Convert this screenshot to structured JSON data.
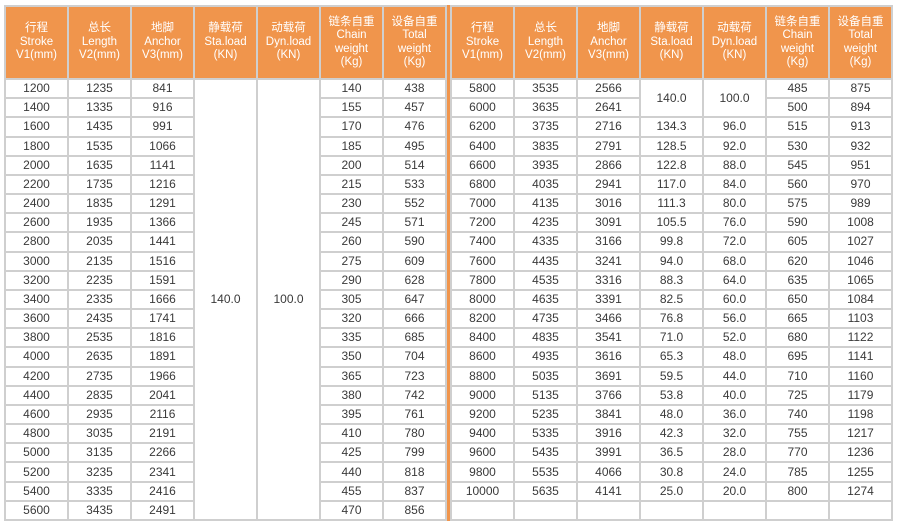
{
  "colors": {
    "header_bg": "#F0954C",
    "header_text": "#FFFFFF",
    "grid_line": "#CFCFCF",
    "body_text": "#3A3A3A",
    "cell_bg": "#FFFFFF",
    "center_divider": "#F0954C"
  },
  "columns": [
    {
      "id": "stroke",
      "lines": [
        "行程",
        "Stroke",
        "V1(mm)"
      ]
    },
    {
      "id": "length",
      "lines": [
        "总长",
        "Length",
        "V2(mm)"
      ]
    },
    {
      "id": "anchor",
      "lines": [
        "地脚",
        "Anchor",
        "V3(mm)"
      ]
    },
    {
      "id": "sta-load",
      "lines": [
        "静载荷",
        "Sta.load",
        "(KN)"
      ]
    },
    {
      "id": "dyn-load",
      "lines": [
        "动载荷",
        "Dyn.load",
        "(KN)"
      ]
    },
    {
      "id": "chain-weight",
      "lines": [
        "链条自重",
        "Chain",
        "weight",
        "(Kg)"
      ]
    },
    {
      "id": "total-weight",
      "lines": [
        "设备自重",
        "Total",
        "weight",
        "(Kg)"
      ]
    }
  ],
  "left_table": {
    "merges": [
      {
        "row": 0,
        "col": 3,
        "rowspan": 23,
        "value": "140.0"
      },
      {
        "row": 0,
        "col": 4,
        "rowspan": 23,
        "value": "100.0"
      }
    ],
    "rows": [
      [
        "1200",
        "1235",
        "841",
        "",
        "",
        "140",
        "438"
      ],
      [
        "1400",
        "1335",
        "916",
        "",
        "",
        "155",
        "457"
      ],
      [
        "1600",
        "1435",
        "991",
        "",
        "",
        "170",
        "476"
      ],
      [
        "1800",
        "1535",
        "1066",
        "",
        "",
        "185",
        "495"
      ],
      [
        "2000",
        "1635",
        "1141",
        "",
        "",
        "200",
        "514"
      ],
      [
        "2200",
        "1735",
        "1216",
        "",
        "",
        "215",
        "533"
      ],
      [
        "2400",
        "1835",
        "1291",
        "",
        "",
        "230",
        "552"
      ],
      [
        "2600",
        "1935",
        "1366",
        "",
        "",
        "245",
        "571"
      ],
      [
        "2800",
        "2035",
        "1441",
        "",
        "",
        "260",
        "590"
      ],
      [
        "3000",
        "2135",
        "1516",
        "",
        "",
        "275",
        "609"
      ],
      [
        "3200",
        "2235",
        "1591",
        "",
        "",
        "290",
        "628"
      ],
      [
        "3400",
        "2335",
        "1666",
        "",
        "",
        "305",
        "647"
      ],
      [
        "3600",
        "2435",
        "1741",
        "",
        "",
        "320",
        "666"
      ],
      [
        "3800",
        "2535",
        "1816",
        "",
        "",
        "335",
        "685"
      ],
      [
        "4000",
        "2635",
        "1891",
        "",
        "",
        "350",
        "704"
      ],
      [
        "4200",
        "2735",
        "1966",
        "",
        "",
        "365",
        "723"
      ],
      [
        "4400",
        "2835",
        "2041",
        "",
        "",
        "380",
        "742"
      ],
      [
        "4600",
        "2935",
        "2116",
        "",
        "",
        "395",
        "761"
      ],
      [
        "4800",
        "3035",
        "2191",
        "",
        "",
        "410",
        "780"
      ],
      [
        "5000",
        "3135",
        "2266",
        "",
        "",
        "425",
        "799"
      ],
      [
        "5200",
        "3235",
        "2341",
        "",
        "",
        "440",
        "818"
      ],
      [
        "5400",
        "3335",
        "2416",
        "",
        "",
        "455",
        "837"
      ],
      [
        "5600",
        "3435",
        "2491",
        "",
        "",
        "470",
        "856"
      ]
    ]
  },
  "right_table": {
    "merges": [
      {
        "row": 0,
        "col": 3,
        "rowspan": 2,
        "value": "140.0"
      },
      {
        "row": 0,
        "col": 4,
        "rowspan": 2,
        "value": "100.0"
      }
    ],
    "rows": [
      [
        "5800",
        "3535",
        "2566",
        "",
        "",
        "485",
        "875"
      ],
      [
        "6000",
        "3635",
        "2641",
        "",
        "",
        "500",
        "894"
      ],
      [
        "6200",
        "3735",
        "2716",
        "134.3",
        "96.0",
        "515",
        "913"
      ],
      [
        "6400",
        "3835",
        "2791",
        "128.5",
        "92.0",
        "530",
        "932"
      ],
      [
        "6600",
        "3935",
        "2866",
        "122.8",
        "88.0",
        "545",
        "951"
      ],
      [
        "6800",
        "4035",
        "2941",
        "117.0",
        "84.0",
        "560",
        "970"
      ],
      [
        "7000",
        "4135",
        "3016",
        "111.3",
        "80.0",
        "575",
        "989"
      ],
      [
        "7200",
        "4235",
        "3091",
        "105.5",
        "76.0",
        "590",
        "1008"
      ],
      [
        "7400",
        "4335",
        "3166",
        "99.8",
        "72.0",
        "605",
        "1027"
      ],
      [
        "7600",
        "4435",
        "3241",
        "94.0",
        "68.0",
        "620",
        "1046"
      ],
      [
        "7800",
        "4535",
        "3316",
        "88.3",
        "64.0",
        "635",
        "1065"
      ],
      [
        "8000",
        "4635",
        "3391",
        "82.5",
        "60.0",
        "650",
        "1084"
      ],
      [
        "8200",
        "4735",
        "3466",
        "76.8",
        "56.0",
        "665",
        "1103"
      ],
      [
        "8400",
        "4835",
        "3541",
        "71.0",
        "52.0",
        "680",
        "1122"
      ],
      [
        "8600",
        "4935",
        "3616",
        "65.3",
        "48.0",
        "695",
        "1141"
      ],
      [
        "8800",
        "5035",
        "3691",
        "59.5",
        "44.0",
        "710",
        "1160"
      ],
      [
        "9000",
        "5135",
        "3766",
        "53.8",
        "40.0",
        "725",
        "1179"
      ],
      [
        "9200",
        "5235",
        "3841",
        "48.0",
        "36.0",
        "740",
        "1198"
      ],
      [
        "9400",
        "5335",
        "3916",
        "42.3",
        "32.0",
        "755",
        "1217"
      ],
      [
        "9600",
        "5435",
        "3991",
        "36.5",
        "28.0",
        "770",
        "1236"
      ],
      [
        "9800",
        "5535",
        "4066",
        "30.8",
        "24.0",
        "785",
        "1255"
      ],
      [
        "10000",
        "5635",
        "4141",
        "25.0",
        "20.0",
        "800",
        "1274"
      ],
      [
        "",
        "",
        "",
        "",
        "",
        "",
        ""
      ]
    ]
  }
}
